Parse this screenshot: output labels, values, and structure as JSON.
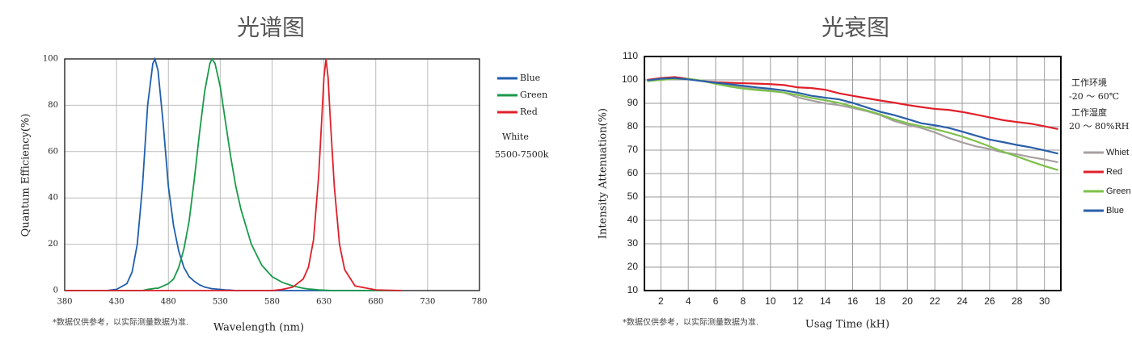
{
  "chart_data": [
    {
      "type": "line",
      "title": "光谱图",
      "x_label": "Wavelength  (nm)",
      "y_label": "Quantum   Efficiency(%)",
      "note": "*数据仅供参考，以实际测量数据为准.",
      "annotations": [
        "White",
        "5500-7500k"
      ],
      "x": [
        380,
        400,
        420,
        430,
        440,
        445,
        450,
        455,
        460,
        465,
        467,
        470,
        475,
        480,
        485,
        490,
        495,
        500,
        505,
        510,
        515,
        520,
        522,
        525,
        530,
        535,
        540,
        545,
        550,
        560,
        570,
        580,
        590,
        600,
        610,
        615,
        620,
        625,
        628,
        630,
        632,
        634,
        636,
        640,
        645,
        650,
        660,
        680,
        705
      ],
      "series": [
        {
          "name": "Blue",
          "color": "#1f5fae",
          "values": [
            0,
            0,
            0,
            0.5,
            3,
            8,
            20,
            45,
            80,
            98,
            100,
            95,
            72,
            45,
            28,
            17,
            10,
            6,
            4,
            2.5,
            1.5,
            1,
            0.8,
            0.7,
            0.5,
            0.3,
            0.2,
            0,
            0,
            0,
            0,
            0,
            0,
            0,
            0,
            0,
            0,
            0,
            0,
            0,
            0,
            0,
            0,
            0,
            0,
            0,
            0,
            0,
            0
          ]
        },
        {
          "name": "Green",
          "color": "#1a9a4a",
          "values": [
            0,
            0,
            0,
            0,
            0,
            0,
            0,
            0,
            0.5,
            0.8,
            1,
            1,
            2,
            3,
            5,
            10,
            18,
            30,
            48,
            68,
            86,
            98,
            100,
            98,
            88,
            73,
            58,
            45,
            35,
            20,
            11,
            6,
            3.5,
            2,
            1,
            0.7,
            0.5,
            0.3,
            0.2,
            0.2,
            0.1,
            0.1,
            0,
            0,
            0,
            0,
            0,
            0,
            0
          ]
        },
        {
          "name": "Red",
          "color": "#e0202a",
          "values": [
            0,
            0,
            0,
            0,
            0,
            0,
            0,
            0,
            0,
            0,
            0,
            0,
            0,
            0,
            0,
            0,
            0,
            0,
            0,
            0,
            0,
            0,
            0,
            0,
            0,
            0,
            0,
            0,
            0,
            0,
            0,
            0,
            0.5,
            1.5,
            5,
            10,
            22,
            50,
            75,
            92,
            100,
            92,
            75,
            45,
            20,
            9,
            2,
            0.3,
            0
          ]
        }
      ],
      "xlim": [
        380,
        780
      ],
      "xticks": [
        380,
        430,
        480,
        530,
        580,
        630,
        680,
        730,
        780
      ],
      "ylim": [
        0,
        100
      ],
      "yticks": [
        0,
        20,
        40,
        60,
        80,
        100
      ],
      "grid": true,
      "legend": "right"
    },
    {
      "type": "line",
      "title": "光衰图",
      "x_label": "Usag Time (kH)",
      "y_label": "Intensity Attenuation(%)",
      "note": "*数据仅供参考，以实际测量数据为准.",
      "annotations": [
        "工作环境",
        "-20 ～ 60℃",
        "工作湿度",
        "20 ～ 80%RH"
      ],
      "x": [
        1,
        2,
        3,
        4,
        5,
        6,
        7,
        8,
        9,
        10,
        11,
        12,
        13,
        14,
        15,
        16,
        17,
        18,
        19,
        20,
        21,
        22,
        23,
        24,
        25,
        26,
        27,
        28,
        29,
        30,
        31
      ],
      "series": [
        {
          "name": "Whiet",
          "color": "#a8a0a0",
          "values": [
            99.5,
            100,
            100.6,
            100.3,
            99.5,
            98.5,
            97.6,
            96.8,
            96,
            95.4,
            94.6,
            92.5,
            91.2,
            90,
            89.2,
            88,
            86.7,
            85,
            82.5,
            80.8,
            79.5,
            77.6,
            75.2,
            73.3,
            71.6,
            70.5,
            69,
            68.2,
            67,
            66,
            64.8
          ]
        },
        {
          "name": "Red",
          "color": "#e0202a",
          "values": [
            100,
            100.8,
            101.2,
            100.5,
            99.5,
            99,
            98.8,
            98.6,
            98.4,
            98.2,
            97.8,
            96.8,
            96.5,
            95.8,
            94.3,
            93.2,
            92.2,
            91.2,
            90.3,
            89.3,
            88.4,
            87.6,
            87.2,
            86.3,
            85.2,
            84,
            82.8,
            82,
            81.3,
            80.2,
            79
          ]
        },
        {
          "name": "Green",
          "color": "#7cc04a",
          "values": [
            99.5,
            100,
            100.5,
            100.5,
            99.7,
            98.3,
            97.2,
            96.3,
            95.7,
            95.2,
            94.6,
            93.5,
            92.3,
            91.3,
            90.2,
            88.6,
            87,
            85.3,
            83.2,
            81.5,
            80.2,
            79,
            77.5,
            75.8,
            73.8,
            71.6,
            69.3,
            67.3,
            65.2,
            63.2,
            61.5
          ]
        },
        {
          "name": "Blue",
          "color": "#2a5fa8",
          "values": [
            99.8,
            100.5,
            100.8,
            100.2,
            99.5,
            98.8,
            98.2,
            97.5,
            96.8,
            96.2,
            95.5,
            94.5,
            93.2,
            92.4,
            91.7,
            90.2,
            88.3,
            86.4,
            85,
            83.3,
            81.5,
            80.6,
            79.5,
            77.9,
            76.2,
            74.5,
            73.4,
            72.2,
            71.2,
            69.9,
            68.5
          ]
        }
      ],
      "xlim": [
        0.8,
        31.2
      ],
      "xticks": [
        2,
        4,
        6,
        8,
        10,
        12,
        14,
        16,
        18,
        20,
        22,
        24,
        26,
        28,
        30
      ],
      "ylim": [
        10,
        110
      ],
      "yticks": [
        10,
        20,
        30,
        40,
        50,
        60,
        70,
        80,
        90,
        100,
        110
      ],
      "grid": true,
      "legend": "right"
    }
  ]
}
